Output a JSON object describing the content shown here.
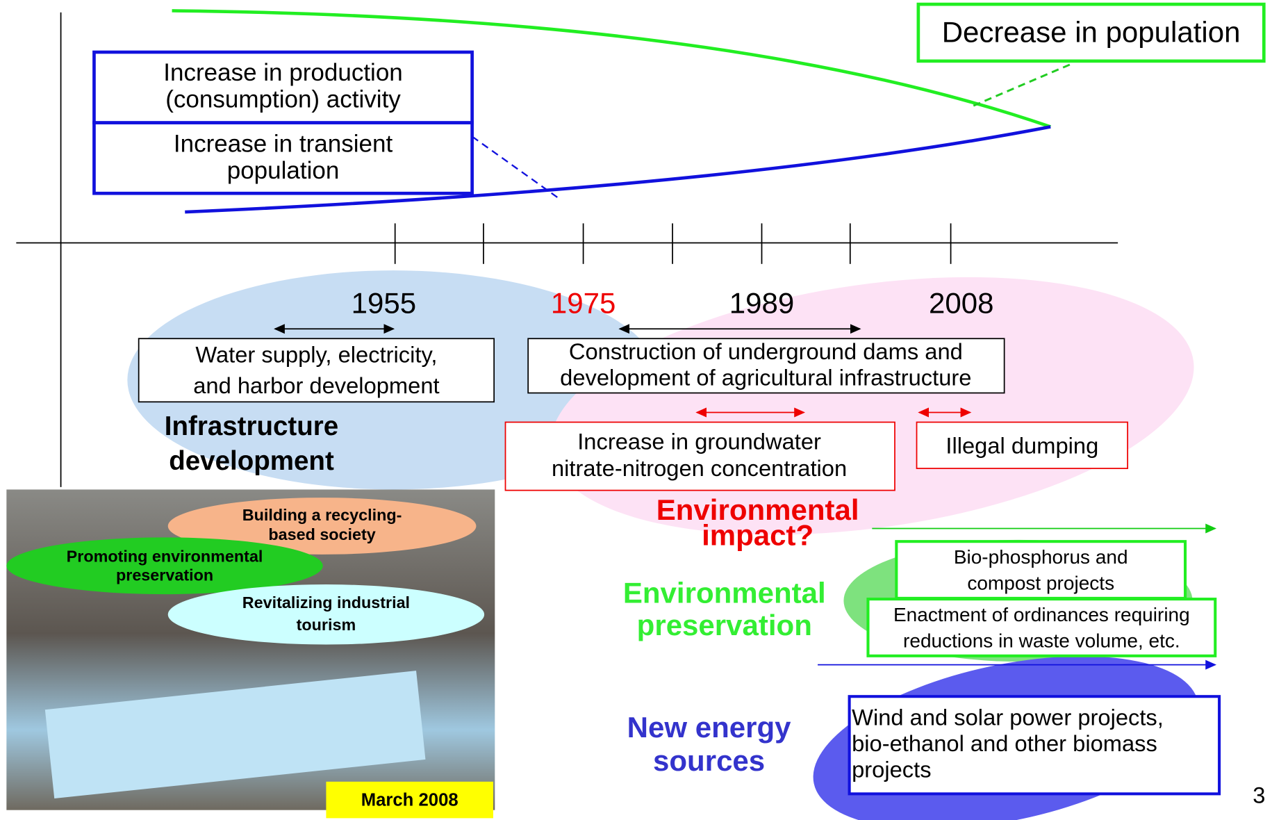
{
  "trends": {
    "population": "Decrease in population",
    "production": [
      "Increase in production",
      "(consumption) activity"
    ],
    "transient": [
      "Increase in transient",
      "population"
    ]
  },
  "years": [
    "1955",
    "1975",
    "1989",
    "2008"
  ],
  "infrastructure": {
    "title": [
      "Infrastructure",
      "development"
    ],
    "items": [
      [
        "Water supply, electricity,",
        "and harbor development"
      ],
      [
        "Construction of underground dams and",
        "development of agricultural infrastructure"
      ]
    ]
  },
  "impact": {
    "title": [
      "Environmental",
      "impact?"
    ],
    "items": [
      [
        "Increase in groundwater",
        "nitrate-nitrogen concentration"
      ],
      [
        "Illegal dumping"
      ]
    ]
  },
  "preservation": {
    "title": [
      "Environmental",
      "preservation"
    ],
    "items": [
      [
        "Bio-phosphorus and",
        "compost projects"
      ],
      [
        "Enactment of ordinances requiring",
        "reductions in waste volume, etc."
      ]
    ]
  },
  "energy": {
    "title": [
      "New energy",
      "sources"
    ],
    "items": [
      [
        "Wind and solar power projects,",
        "bio-ethanol and other biomass",
        "projects"
      ]
    ]
  },
  "photo": {
    "bubbles": [
      [
        "Building a recycling-",
        "based society"
      ],
      [
        "Promoting environmental",
        "preservation"
      ],
      [
        "Revitalizing industrial",
        "tourism"
      ]
    ],
    "caption": "March 2008"
  },
  "page_number": "3"
}
